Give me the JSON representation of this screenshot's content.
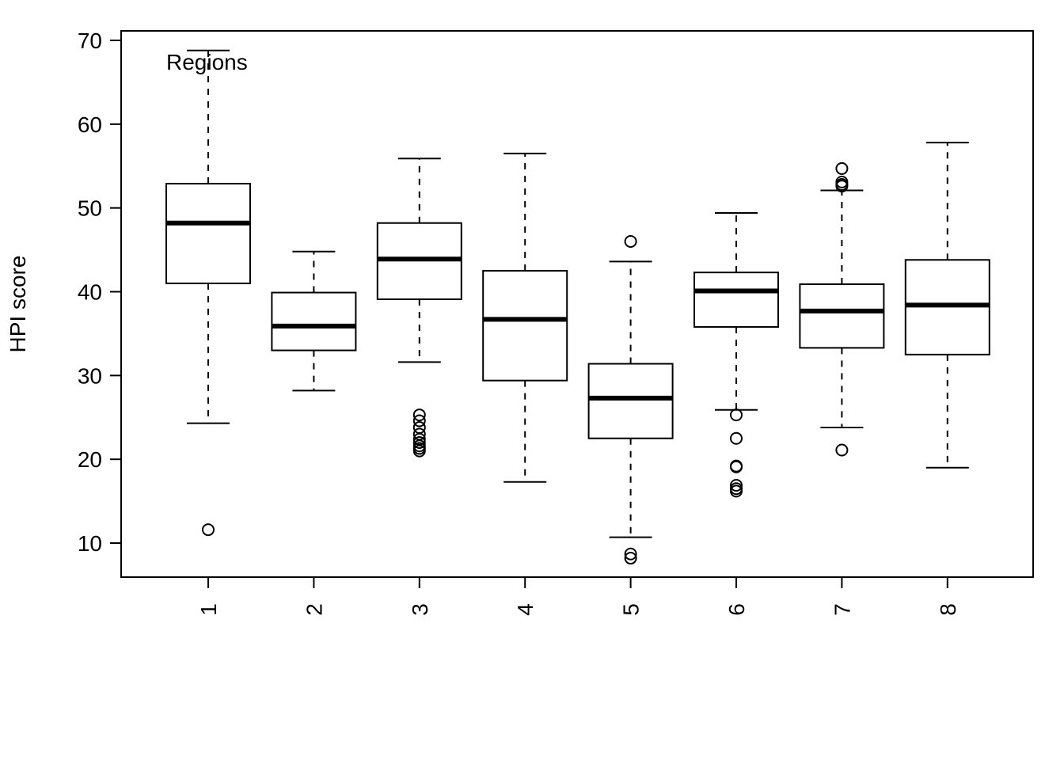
{
  "chart_data": {
    "type": "box",
    "title": "",
    "xlabel": "",
    "ylabel": "HPI score",
    "annotation": "Regions",
    "ylim": [
      6,
      71
    ],
    "yticks": [
      10,
      20,
      30,
      40,
      50,
      60,
      70
    ],
    "grid": false,
    "categories": [
      "1",
      "2",
      "3",
      "4",
      "5",
      "6",
      "7",
      "8"
    ],
    "boxes": [
      {
        "category": "1",
        "whisker_low": 24.3,
        "q1": 41.0,
        "median": 48.2,
        "q3": 52.9,
        "whisker_high": 68.8,
        "outliers": [
          11.6
        ]
      },
      {
        "category": "2",
        "whisker_low": 28.2,
        "q1": 33.0,
        "median": 35.9,
        "q3": 39.9,
        "whisker_high": 44.8,
        "outliers": []
      },
      {
        "category": "3",
        "whisker_low": 31.6,
        "q1": 39.1,
        "median": 43.9,
        "q3": 48.2,
        "whisker_high": 55.9,
        "outliers": [
          25.3,
          24.6,
          23.8,
          23.0,
          22.4,
          22.0,
          21.6,
          21.3,
          21.0
        ]
      },
      {
        "category": "4",
        "whisker_low": 17.3,
        "q1": 29.4,
        "median": 36.7,
        "q3": 42.5,
        "whisker_high": 56.5,
        "outliers": []
      },
      {
        "category": "5",
        "whisker_low": 10.7,
        "q1": 22.5,
        "median": 27.3,
        "q3": 31.4,
        "whisker_high": 43.6,
        "outliers": [
          46.0,
          8.7,
          8.2
        ]
      },
      {
        "category": "6",
        "whisker_low": 25.9,
        "q1": 35.8,
        "median": 40.1,
        "q3": 42.3,
        "whisker_high": 49.4,
        "outliers": [
          25.3,
          22.5,
          19.2,
          19.1,
          16.9,
          16.5,
          16.2
        ]
      },
      {
        "category": "7",
        "whisker_low": 23.8,
        "q1": 33.3,
        "median": 37.7,
        "q3": 40.9,
        "whisker_high": 52.1,
        "outliers": [
          54.7,
          53.1,
          52.8,
          52.6,
          21.1
        ]
      },
      {
        "category": "8",
        "whisker_low": 19.0,
        "q1": 32.5,
        "median": 38.4,
        "q3": 43.8,
        "whisker_high": 57.8,
        "outliers": []
      }
    ]
  }
}
